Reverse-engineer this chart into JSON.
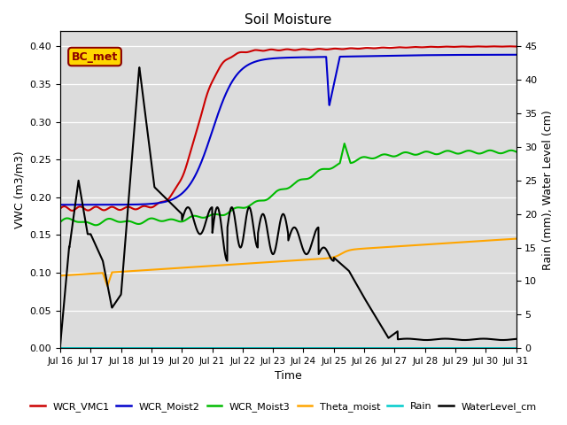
{
  "title": "Soil Moisture",
  "xlabel": "Time",
  "ylabel_left": "VWC (m3/m3)",
  "ylabel_right": "Rain (mm), Water Level (cm)",
  "xlim": [
    0,
    15
  ],
  "ylim_left": [
    0.0,
    0.42
  ],
  "ylim_right": [
    0,
    47.25
  ],
  "annotation_text": "BC_met",
  "annotation_color": "#8B0000",
  "annotation_bg": "#FFD700",
  "bg_color": "#DCDCDC",
  "xtick_labels": [
    "Jul 16",
    "Jul 17",
    "Jul 18",
    "Jul 19",
    "Jul 20",
    "Jul 21",
    "Jul 22",
    "Jul 23",
    "Jul 24",
    "Jul 25",
    "Jul 26",
    "Jul 27",
    "Jul 28",
    "Jul 29",
    "Jul 30",
    "Jul 31"
  ],
  "xtick_positions": [
    0,
    1,
    2,
    3,
    4,
    5,
    6,
    7,
    8,
    9,
    10,
    11,
    12,
    13,
    14,
    15
  ],
  "yticks_left": [
    0.0,
    0.05,
    0.1,
    0.15,
    0.2,
    0.25,
    0.3,
    0.35,
    0.4
  ],
  "yticks_right": [
    0,
    5,
    10,
    15,
    20,
    25,
    30,
    35,
    40,
    45
  ],
  "series": {
    "WCR_VMC1": {
      "color": "#CC0000",
      "lw": 1.5
    },
    "WCR_Moist2": {
      "color": "#0000CC",
      "lw": 1.5
    },
    "WCR_Moist3": {
      "color": "#00BB00",
      "lw": 1.5
    },
    "Theta_moist": {
      "color": "#FFA500",
      "lw": 1.5
    },
    "Rain": {
      "color": "#00CCCC",
      "lw": 1.5
    },
    "WaterLevel_cm": {
      "color": "#000000",
      "lw": 1.5
    }
  }
}
